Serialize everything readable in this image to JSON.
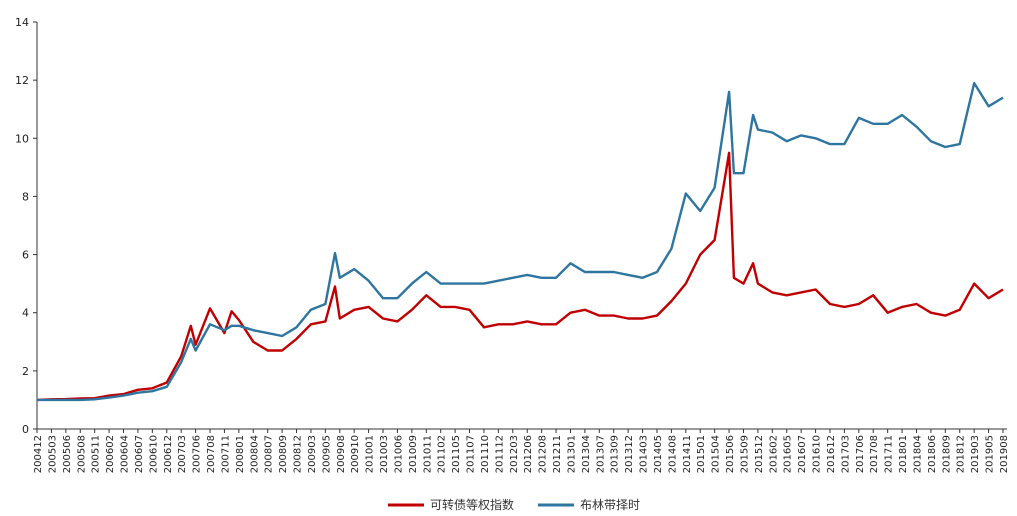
{
  "chart_data": {
    "type": "line",
    "title": "",
    "xlabel": "",
    "ylabel": "",
    "ylim": [
      0,
      14
    ],
    "yticks": [
      0,
      2,
      4,
      6,
      8,
      10,
      12,
      14
    ],
    "grid": false,
    "legend_position": "bottom-center",
    "x_tick_labels": [
      "200412",
      "200503",
      "200506",
      "200508",
      "200511",
      "200602",
      "200604",
      "200607",
      "200610",
      "200612",
      "200703",
      "200706",
      "200708",
      "200711",
      "200801",
      "200804",
      "200807",
      "200809",
      "200812",
      "200903",
      "200905",
      "200908",
      "200910",
      "201001",
      "201003",
      "201006",
      "201009",
      "201011",
      "201102",
      "201105",
      "201107",
      "201110",
      "201112",
      "201203",
      "201206",
      "201208",
      "201211",
      "201301",
      "201304",
      "201307",
      "201309",
      "201312",
      "201403",
      "201405",
      "201408",
      "201411",
      "201501",
      "201504",
      "201506",
      "201509",
      "201512",
      "201602",
      "201605",
      "201607",
      "201610",
      "201612",
      "201703",
      "201706",
      "201708",
      "201711",
      "201801",
      "201804",
      "201806",
      "201809",
      "201812",
      "201903",
      "201905",
      "201908"
    ],
    "series": [
      {
        "name": "可转债等权指数",
        "color": "#c00000",
        "points": [
          [
            "200412",
            1.0
          ],
          [
            "200503",
            1.02
          ],
          [
            "200506",
            1.03
          ],
          [
            "200508",
            1.05
          ],
          [
            "200511",
            1.06
          ],
          [
            "200602",
            1.15
          ],
          [
            "200604",
            1.2
          ],
          [
            "200607",
            1.35
          ],
          [
            "200610",
            1.4
          ],
          [
            "200612",
            1.6
          ],
          [
            "200703",
            2.5
          ],
          [
            "200705",
            3.55
          ],
          [
            "200706",
            2.9
          ],
          [
            "200708",
            4.15
          ],
          [
            "200711",
            3.3
          ],
          [
            "200712",
            4.05
          ],
          [
            "200801",
            3.75
          ],
          [
            "200804",
            3.0
          ],
          [
            "200807",
            2.7
          ],
          [
            "200809",
            2.7
          ],
          [
            "200812",
            3.1
          ],
          [
            "200903",
            3.6
          ],
          [
            "200905",
            3.7
          ],
          [
            "200907",
            4.9
          ],
          [
            "200908",
            3.8
          ],
          [
            "200910",
            4.1
          ],
          [
            "201001",
            4.2
          ],
          [
            "201003",
            3.8
          ],
          [
            "201006",
            3.7
          ],
          [
            "201009",
            4.1
          ],
          [
            "201011",
            4.6
          ],
          [
            "201102",
            4.2
          ],
          [
            "201105",
            4.2
          ],
          [
            "201107",
            4.1
          ],
          [
            "201110",
            3.5
          ],
          [
            "201112",
            3.6
          ],
          [
            "201203",
            3.6
          ],
          [
            "201206",
            3.7
          ],
          [
            "201208",
            3.6
          ],
          [
            "201211",
            3.6
          ],
          [
            "201301",
            4.0
          ],
          [
            "201304",
            4.1
          ],
          [
            "201307",
            3.9
          ],
          [
            "201309",
            3.9
          ],
          [
            "201312",
            3.8
          ],
          [
            "201403",
            3.8
          ],
          [
            "201405",
            3.9
          ],
          [
            "201408",
            4.4
          ],
          [
            "201411",
            5.0
          ],
          [
            "201501",
            6.0
          ],
          [
            "201504",
            6.5
          ],
          [
            "201506",
            9.5
          ],
          [
            "201507",
            5.2
          ],
          [
            "201509",
            5.0
          ],
          [
            "201511",
            5.7
          ],
          [
            "201512",
            5.0
          ],
          [
            "201602",
            4.7
          ],
          [
            "201605",
            4.6
          ],
          [
            "201607",
            4.7
          ],
          [
            "201610",
            4.8
          ],
          [
            "201612",
            4.3
          ],
          [
            "201703",
            4.2
          ],
          [
            "201706",
            4.3
          ],
          [
            "201708",
            4.6
          ],
          [
            "201711",
            4.0
          ],
          [
            "201801",
            4.2
          ],
          [
            "201804",
            4.3
          ],
          [
            "201806",
            4.0
          ],
          [
            "201809",
            3.9
          ],
          [
            "201812",
            4.1
          ],
          [
            "201903",
            5.0
          ],
          [
            "201905",
            4.5
          ],
          [
            "201908",
            4.8
          ]
        ]
      },
      {
        "name": "布林带择时",
        "color": "#2e75a0",
        "points": [
          [
            "200412",
            1.0
          ],
          [
            "200503",
            1.0
          ],
          [
            "200506",
            1.0
          ],
          [
            "200508",
            1.0
          ],
          [
            "200511",
            1.02
          ],
          [
            "200602",
            1.08
          ],
          [
            "200604",
            1.15
          ],
          [
            "200607",
            1.25
          ],
          [
            "200610",
            1.3
          ],
          [
            "200612",
            1.45
          ],
          [
            "200703",
            2.3
          ],
          [
            "200705",
            3.1
          ],
          [
            "200706",
            2.7
          ],
          [
            "200708",
            3.6
          ],
          [
            "200711",
            3.4
          ],
          [
            "200712",
            3.55
          ],
          [
            "200801",
            3.55
          ],
          [
            "200804",
            3.4
          ],
          [
            "200807",
            3.3
          ],
          [
            "200809",
            3.2
          ],
          [
            "200812",
            3.5
          ],
          [
            "200903",
            4.1
          ],
          [
            "200905",
            4.3
          ],
          [
            "200907",
            6.05
          ],
          [
            "200908",
            5.2
          ],
          [
            "200910",
            5.5
          ],
          [
            "201001",
            5.1
          ],
          [
            "201003",
            4.5
          ],
          [
            "201006",
            4.5
          ],
          [
            "201009",
            5.0
          ],
          [
            "201011",
            5.4
          ],
          [
            "201102",
            5.0
          ],
          [
            "201105",
            5.0
          ],
          [
            "201107",
            5.0
          ],
          [
            "201110",
            5.0
          ],
          [
            "201112",
            5.1
          ],
          [
            "201203",
            5.2
          ],
          [
            "201206",
            5.3
          ],
          [
            "201208",
            5.2
          ],
          [
            "201211",
            5.2
          ],
          [
            "201301",
            5.7
          ],
          [
            "201304",
            5.4
          ],
          [
            "201307",
            5.4
          ],
          [
            "201309",
            5.4
          ],
          [
            "201312",
            5.3
          ],
          [
            "201403",
            5.2
          ],
          [
            "201405",
            5.4
          ],
          [
            "201408",
            6.2
          ],
          [
            "201411",
            8.1
          ],
          [
            "201501",
            7.5
          ],
          [
            "201504",
            8.3
          ],
          [
            "201506",
            11.6
          ],
          [
            "201507",
            8.8
          ],
          [
            "201509",
            8.8
          ],
          [
            "201511",
            10.8
          ],
          [
            "201512",
            10.3
          ],
          [
            "201602",
            10.2
          ],
          [
            "201605",
            9.9
          ],
          [
            "201607",
            10.1
          ],
          [
            "201610",
            10.0
          ],
          [
            "201612",
            9.8
          ],
          [
            "201703",
            9.8
          ],
          [
            "201706",
            10.7
          ],
          [
            "201708",
            10.5
          ],
          [
            "201711",
            10.5
          ],
          [
            "201801",
            10.8
          ],
          [
            "201804",
            10.4
          ],
          [
            "201806",
            9.9
          ],
          [
            "201809",
            9.7
          ],
          [
            "201812",
            9.8
          ],
          [
            "201903",
            11.9
          ],
          [
            "201905",
            11.1
          ],
          [
            "201908",
            11.4
          ]
        ]
      }
    ]
  }
}
